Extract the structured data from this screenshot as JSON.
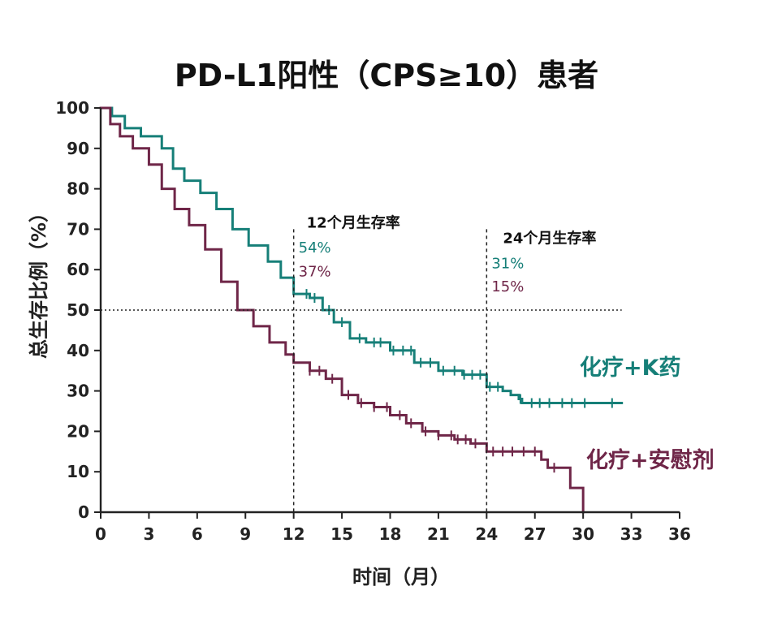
{
  "chart_data": {
    "type": "line",
    "title": "PD-L1阳性（CPS≥10）患者",
    "xlabel": "时间（月）",
    "ylabel": "总生存比例（%）",
    "xlim": [
      0,
      36
    ],
    "ylim": [
      0,
      100
    ],
    "x_ticks": [
      "0",
      "3",
      "6",
      "9",
      "12",
      "15",
      "18",
      "21",
      "24",
      "27",
      "30",
      "33",
      "36"
    ],
    "y_ticks": [
      "0",
      "10",
      "20",
      "30",
      "40",
      "50",
      "60",
      "70",
      "80",
      "90",
      "100"
    ],
    "grid": false,
    "reference_lines": {
      "y": [
        50
      ],
      "x": [
        12,
        24
      ]
    },
    "annotations": [
      {
        "x": 12,
        "label": "12个月生存率",
        "values": [
          "54%",
          "37%"
        ]
      },
      {
        "x": 24,
        "label": "24个月生存率",
        "values": [
          "31%",
          "15%"
        ]
      }
    ],
    "series": [
      {
        "name": "化疗+K药",
        "color": "#167f78",
        "x": [
          0,
          0.7,
          1.5,
          2.5,
          3.8,
          4.5,
          5.2,
          6.2,
          7.2,
          8.2,
          9.2,
          10.4,
          11.2,
          12.0,
          13.0,
          13.8,
          14.5,
          15.5,
          16.5,
          18.0,
          19.5,
          21.0,
          22.5,
          24.0,
          25.0,
          25.5,
          26.0,
          26.2,
          27.0,
          28.5,
          30.0,
          31.0,
          32.4
        ],
        "y": [
          100,
          98,
          95,
          93,
          90,
          85,
          82,
          79,
          75,
          70,
          66,
          62,
          58,
          54,
          53,
          50,
          47,
          43,
          42,
          40,
          37,
          35,
          34,
          31,
          30,
          29,
          28,
          27,
          27,
          27,
          27,
          27,
          27
        ]
      },
      {
        "name": "化疗+安慰剂",
        "color": "#6f2648",
        "x": [
          0,
          0.6,
          1.2,
          2.0,
          3.0,
          3.8,
          4.6,
          5.5,
          6.5,
          7.5,
          8.5,
          9.5,
          10.5,
          11.5,
          12.0,
          13.0,
          14.0,
          15.0,
          16.0,
          17.0,
          18.0,
          19.0,
          20.0,
          21.0,
          22.0,
          23.0,
          24.0,
          25.0,
          26.0,
          27.0,
          27.4,
          27.8,
          28.5,
          29.2,
          29.8,
          30.0
        ],
        "y": [
          100,
          96,
          93,
          90,
          86,
          80,
          75,
          71,
          65,
          57,
          50,
          46,
          42,
          39,
          37,
          35,
          33,
          29,
          27,
          26,
          24,
          22,
          20,
          19,
          18,
          17,
          15,
          15,
          15,
          15,
          13,
          11,
          11,
          6,
          6,
          0
        ]
      }
    ],
    "series_label_positions": [
      "right",
      "right"
    ],
    "censor_ticks": {
      "化疗+K药": [
        12.8,
        13.3,
        14.2,
        15.0,
        16.1,
        17.0,
        17.4,
        18.2,
        18.8,
        19.3,
        19.9,
        20.5,
        21.3,
        22.0,
        22.6,
        23.1,
        23.6,
        24.2,
        24.7,
        26.1,
        26.8,
        27.3,
        27.9,
        28.7,
        29.3,
        30.1,
        31.8
      ],
      "化疗+安慰剂": [
        13.0,
        13.6,
        14.4,
        15.4,
        16.2,
        17.0,
        17.8,
        18.6,
        19.3,
        20.2,
        21.0,
        21.8,
        22.2,
        22.7,
        23.3,
        24.4,
        25.0,
        25.6,
        26.3,
        27.0,
        28.2
      ]
    }
  }
}
